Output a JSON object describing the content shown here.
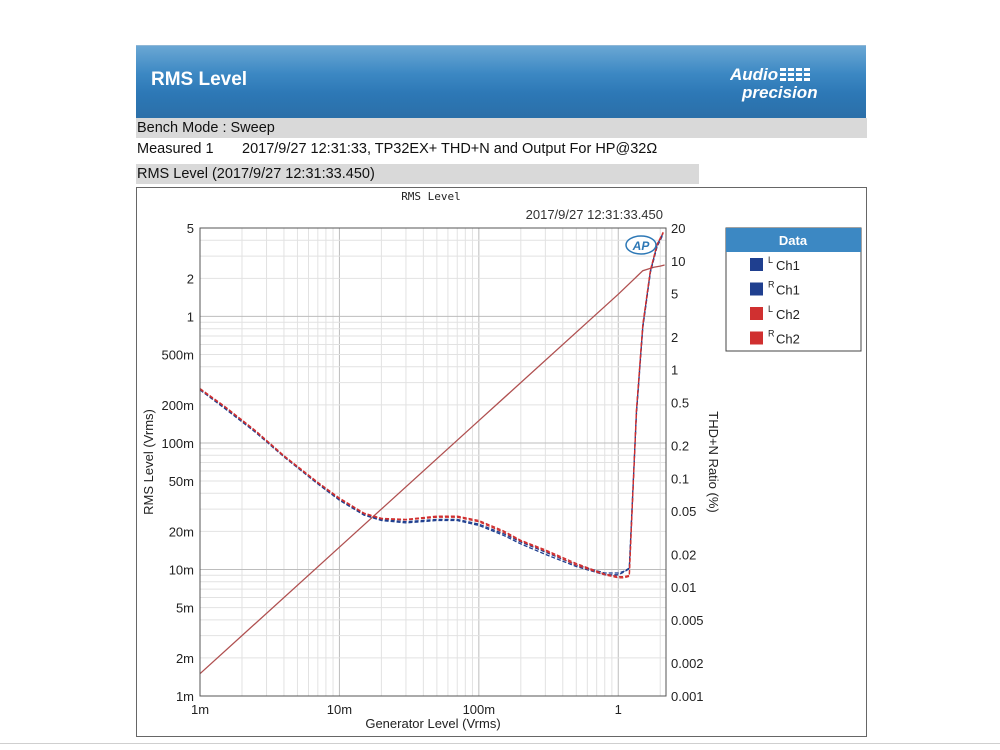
{
  "header": {
    "title": "RMS Level",
    "logo_line1": "Audio",
    "logo_line2": "precision"
  },
  "bench_mode": "Bench Mode : Sweep",
  "measured": {
    "label": "Measured 1",
    "value": "2017/9/27 12:31:33, TP32EX+ THD+N and Output For HP@32Ω"
  },
  "plot_header": "RMS Level (2017/9/27 12:31:33.450)",
  "chart_data": {
    "type": "line",
    "title": "RMS Level",
    "subtitle": "2017/9/27 12:31:33.450",
    "logo": "AP",
    "xlabel": "Generator Level (Vrms)",
    "ylabel": "RMS Level (Vrms)",
    "y2label": "THD+N Ratio (%)",
    "xscale": "log",
    "yscale": "log",
    "y2scale": "log",
    "xlim": [
      0.001,
      2.2
    ],
    "ylim": [
      0.001,
      5
    ],
    "y2lim": [
      0.001,
      20
    ],
    "grid": true,
    "legend": {
      "title": "Data",
      "placement": "outside-right",
      "entries": [
        {
          "sup": "L",
          "name": "Ch1",
          "color": "#1f3f8f"
        },
        {
          "sup": "R",
          "name": "Ch1",
          "color": "#1f3f8f"
        },
        {
          "sup": "L",
          "name": "Ch2",
          "color": "#d03030"
        },
        {
          "sup": "R",
          "name": "Ch2",
          "color": "#d03030"
        }
      ]
    },
    "x_ticks": [
      {
        "v": 0.001,
        "label": "1m"
      },
      {
        "v": 0.01,
        "label": "10m"
      },
      {
        "v": 0.1,
        "label": "100m"
      },
      {
        "v": 1,
        "label": "1"
      }
    ],
    "y_ticks": [
      {
        "v": 5,
        "label": "5"
      },
      {
        "v": 2,
        "label": "2"
      },
      {
        "v": 1,
        "label": "1"
      },
      {
        "v": 0.5,
        "label": "500m"
      },
      {
        "v": 0.2,
        "label": "200m"
      },
      {
        "v": 0.1,
        "label": "100m"
      },
      {
        "v": 0.05,
        "label": "50m"
      },
      {
        "v": 0.02,
        "label": "20m"
      },
      {
        "v": 0.01,
        "label": "10m"
      },
      {
        "v": 0.005,
        "label": "5m"
      },
      {
        "v": 0.002,
        "label": "2m"
      },
      {
        "v": 0.001,
        "label": "1m"
      }
    ],
    "y2_ticks": [
      {
        "v": 20,
        "label": "20"
      },
      {
        "v": 10,
        "label": "10"
      },
      {
        "v": 5,
        "label": "5"
      },
      {
        "v": 2,
        "label": "2"
      },
      {
        "v": 1,
        "label": "1"
      },
      {
        "v": 0.5,
        "label": "0.5"
      },
      {
        "v": 0.2,
        "label": "0.2"
      },
      {
        "v": 0.1,
        "label": "0.1"
      },
      {
        "v": 0.05,
        "label": "0.05"
      },
      {
        "v": 0.02,
        "label": "0.02"
      },
      {
        "v": 0.01,
        "label": "0.01"
      },
      {
        "v": 0.005,
        "label": "0.005"
      },
      {
        "v": 0.002,
        "label": "0.002"
      },
      {
        "v": 0.001,
        "label": "0.001"
      }
    ],
    "series": [
      {
        "axis": "left",
        "color": "#b05050",
        "dash": "",
        "points": [
          [
            0.001,
            0.0015
          ],
          [
            0.01,
            0.015
          ],
          [
            0.1,
            0.15
          ],
          [
            1.0,
            1.5
          ],
          [
            1.5,
            2.3
          ],
          [
            1.8,
            2.45
          ],
          [
            2.0,
            2.5
          ],
          [
            2.15,
            2.55
          ]
        ]
      },
      {
        "axis": "right",
        "color": "#1f3f8f",
        "dash": "4,2",
        "points": [
          [
            0.001,
            0.66
          ],
          [
            0.0015,
            0.45
          ],
          [
            0.0025,
            0.27
          ],
          [
            0.004,
            0.16
          ],
          [
            0.007,
            0.09
          ],
          [
            0.01,
            0.064
          ],
          [
            0.015,
            0.047
          ],
          [
            0.02,
            0.042
          ],
          [
            0.03,
            0.04
          ],
          [
            0.05,
            0.042
          ],
          [
            0.07,
            0.042
          ],
          [
            0.1,
            0.038
          ],
          [
            0.15,
            0.031
          ],
          [
            0.2,
            0.026
          ],
          [
            0.3,
            0.021
          ],
          [
            0.5,
            0.016
          ],
          [
            0.8,
            0.0135
          ],
          [
            1.0,
            0.0135
          ],
          [
            1.1,
            0.014
          ],
          [
            1.2,
            0.015
          ],
          [
            1.35,
            0.4
          ],
          [
            1.5,
            2.5
          ],
          [
            1.7,
            8
          ],
          [
            1.9,
            14
          ],
          [
            2.1,
            18
          ]
        ]
      },
      {
        "axis": "right",
        "color": "#1f3f8f",
        "dash": "4,2",
        "points": [
          [
            0.001,
            0.65
          ],
          [
            0.0015,
            0.44
          ],
          [
            0.0025,
            0.265
          ],
          [
            0.004,
            0.158
          ],
          [
            0.007,
            0.089
          ],
          [
            0.01,
            0.063
          ],
          [
            0.015,
            0.046
          ],
          [
            0.02,
            0.041
          ],
          [
            0.03,
            0.039
          ],
          [
            0.05,
            0.041
          ],
          [
            0.07,
            0.041
          ],
          [
            0.1,
            0.037
          ],
          [
            0.15,
            0.03
          ],
          [
            0.2,
            0.025
          ],
          [
            0.3,
            0.02
          ],
          [
            0.5,
            0.0155
          ],
          [
            0.8,
            0.013
          ],
          [
            1.0,
            0.013
          ],
          [
            1.1,
            0.0138
          ],
          [
            1.2,
            0.0148
          ],
          [
            1.35,
            0.38
          ],
          [
            1.5,
            2.4
          ],
          [
            1.7,
            7.8
          ],
          [
            1.9,
            13.5
          ],
          [
            2.1,
            17.5
          ]
        ]
      },
      {
        "axis": "right",
        "color": "#d03030",
        "dash": "4,2",
        "points": [
          [
            0.001,
            0.67
          ],
          [
            0.0015,
            0.46
          ],
          [
            0.0025,
            0.275
          ],
          [
            0.004,
            0.162
          ],
          [
            0.007,
            0.092
          ],
          [
            0.01,
            0.066
          ],
          [
            0.015,
            0.048
          ],
          [
            0.02,
            0.043
          ],
          [
            0.03,
            0.042
          ],
          [
            0.05,
            0.045
          ],
          [
            0.07,
            0.045
          ],
          [
            0.1,
            0.041
          ],
          [
            0.15,
            0.033
          ],
          [
            0.2,
            0.027
          ],
          [
            0.3,
            0.022
          ],
          [
            0.5,
            0.0165
          ],
          [
            0.8,
            0.0132
          ],
          [
            1.0,
            0.0125
          ],
          [
            1.1,
            0.0125
          ],
          [
            1.2,
            0.0128
          ],
          [
            1.35,
            0.42
          ],
          [
            1.5,
            2.6
          ],
          [
            1.7,
            8.2
          ],
          [
            1.9,
            14.2
          ],
          [
            2.1,
            18.3
          ]
        ]
      },
      {
        "axis": "right",
        "color": "#d03030",
        "dash": "4,2",
        "points": [
          [
            0.001,
            0.66
          ],
          [
            0.0015,
            0.455
          ],
          [
            0.0025,
            0.272
          ],
          [
            0.004,
            0.16
          ],
          [
            0.007,
            0.091
          ],
          [
            0.01,
            0.065
          ],
          [
            0.015,
            0.0475
          ],
          [
            0.02,
            0.0425
          ],
          [
            0.03,
            0.0415
          ],
          [
            0.05,
            0.044
          ],
          [
            0.07,
            0.044
          ],
          [
            0.1,
            0.04
          ],
          [
            0.15,
            0.032
          ],
          [
            0.2,
            0.0265
          ],
          [
            0.3,
            0.0215
          ],
          [
            0.5,
            0.016
          ],
          [
            0.8,
            0.013
          ],
          [
            1.0,
            0.0122
          ],
          [
            1.1,
            0.0122
          ],
          [
            1.2,
            0.0126
          ],
          [
            1.35,
            0.41
          ],
          [
            1.5,
            2.55
          ],
          [
            1.7,
            8.1
          ],
          [
            1.9,
            14
          ],
          [
            2.1,
            18
          ]
        ]
      }
    ]
  }
}
